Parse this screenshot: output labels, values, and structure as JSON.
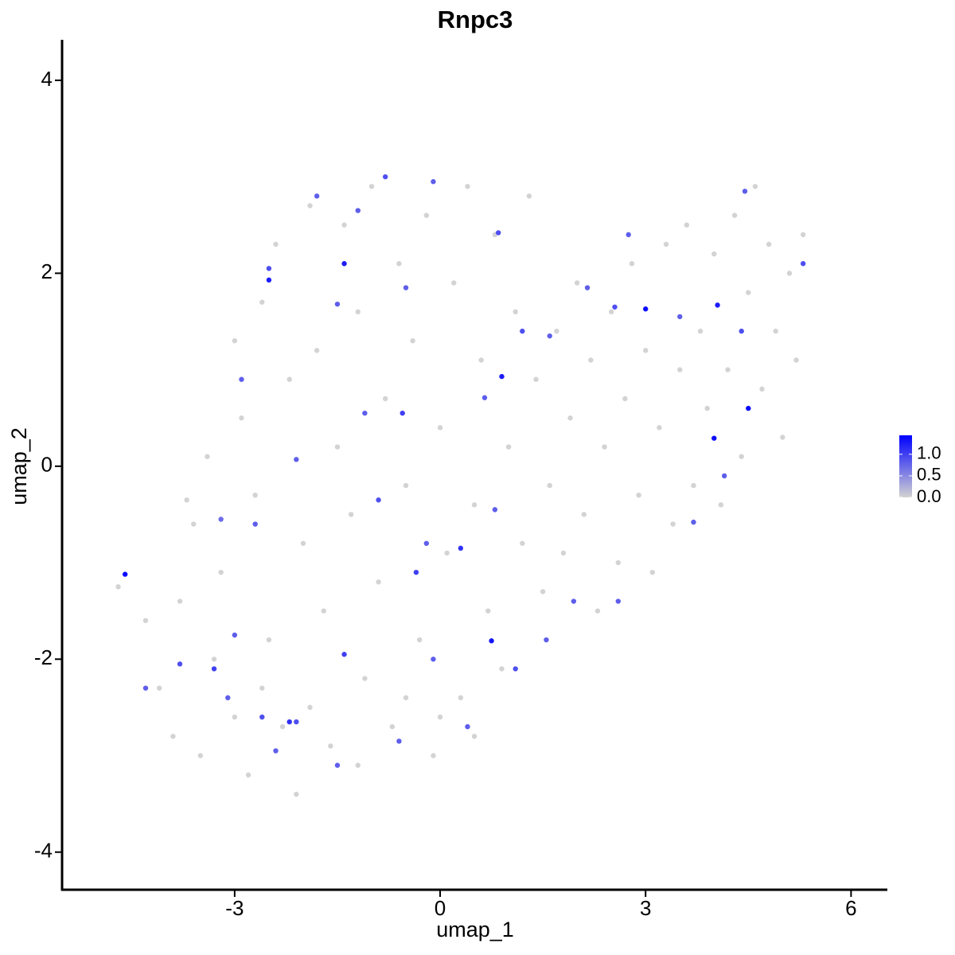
{
  "chart_data": {
    "type": "scatter",
    "title": "Rnpc3",
    "x_label": "umap_1",
    "y_label": "umap_2",
    "xlim": [
      -5.52,
      6.53
    ],
    "ylim": [
      -4.39,
      4.42
    ],
    "xticks": [
      -3,
      0,
      3,
      6
    ],
    "yticks": [
      -4,
      -2,
      0,
      2,
      4
    ],
    "low_color": "#d3d3d3",
    "high_color": "#0000ff",
    "clim": [
      0,
      1.44
    ],
    "cticks": [
      {
        "value": 0,
        "label": "0.0"
      },
      {
        "value": 0.5,
        "label": "0.5"
      },
      {
        "value": 1,
        "label": "1.0"
      }
    ],
    "x": [
      -4.7,
      -4.3,
      -4.1,
      -3.8,
      -3.9,
      -3.5,
      -3.6,
      -3.4,
      -3.2,
      -3.0,
      -3.0,
      -2.9,
      -2.8,
      -2.7,
      -2.6,
      -2.5,
      -2.4,
      -2.3,
      -2.2,
      -2.1,
      -2.0,
      -1.9,
      -1.8,
      -1.7,
      -1.6,
      -1.5,
      -1.4,
      -1.3,
      -1.2,
      -1.1,
      -1.0,
      -0.9,
      -0.8,
      -0.7,
      -0.6,
      -0.5,
      -0.4,
      -0.3,
      -0.2,
      -0.1,
      0.0,
      0.1,
      0.2,
      0.3,
      0.4,
      0.5,
      0.6,
      0.7,
      0.8,
      0.9,
      1.0,
      1.1,
      1.2,
      1.3,
      1.4,
      1.5,
      1.6,
      1.7,
      1.8,
      1.9,
      2.0,
      2.1,
      2.2,
      2.3,
      2.4,
      2.5,
      2.6,
      2.7,
      2.8,
      2.9,
      3.0,
      3.1,
      3.2,
      3.3,
      3.4,
      3.5,
      3.6,
      3.7,
      3.8,
      3.9,
      4.0,
      4.1,
      4.2,
      4.3,
      4.4,
      4.5,
      4.6,
      4.7,
      4.8,
      4.9,
      5.0,
      5.1,
      5.2,
      5.3,
      -3.3,
      -2.6,
      -1.9,
      -1.2,
      -0.5,
      0.5,
      -4.3,
      -3.8,
      -3.3,
      -3.1,
      -2.6,
      -2.4,
      -2.1,
      -1.5,
      -1.4,
      -3.0,
      -2.7,
      -3.2,
      -2.1,
      -2.9,
      -2.5,
      -1.8,
      -1.2,
      -0.8,
      -0.1,
      -0.5,
      -1.5,
      -1.1,
      -0.55,
      -0.9,
      -0.2,
      -0.35,
      0.3,
      0.8,
      0.65,
      1.2,
      1.6,
      0.85,
      2.15,
      2.55,
      2.75,
      3.5,
      4.4,
      4.45,
      5.3,
      4.15,
      3.7,
      2.6,
      1.95,
      1.55,
      1.1,
      0.4,
      -0.6,
      -0.1,
      -3.7,
      0.0,
      -4.6,
      -2.5,
      -1.4,
      0.9,
      3.0,
      4.05,
      4.5,
      4.0,
      0.75,
      -2.2
    ],
    "y": [
      -1.25,
      -1.6,
      -2.3,
      -1.4,
      -2.8,
      -3.0,
      -0.6,
      0.1,
      -1.1,
      -2.6,
      1.3,
      0.5,
      -3.2,
      -0.3,
      1.7,
      -1.8,
      2.3,
      -2.7,
      0.9,
      -3.4,
      -0.8,
      2.7,
      1.2,
      -1.5,
      -2.9,
      0.2,
      2.5,
      -0.5,
      1.6,
      -2.2,
      2.9,
      -1.2,
      0.7,
      -2.7,
      2.1,
      -0.2,
      1.3,
      -1.8,
      2.6,
      -3.0,
      0.4,
      -0.9,
      1.9,
      -2.4,
      2.9,
      -0.4,
      1.1,
      -1.5,
      2.4,
      -2.1,
      0.2,
      1.6,
      -0.8,
      2.8,
      0.9,
      -1.3,
      -0.2,
      1.4,
      -0.9,
      0.5,
      1.9,
      -0.5,
      1.1,
      -1.5,
      0.2,
      1.6,
      -1.0,
      0.7,
      2.1,
      -0.3,
      1.2,
      -1.1,
      0.4,
      2.3,
      -0.6,
      1.0,
      2.5,
      -0.2,
      1.4,
      0.6,
      2.2,
      -0.4,
      1.0,
      2.6,
      0.1,
      1.8,
      2.9,
      0.8,
      2.3,
      1.4,
      0.3,
      2.0,
      1.1,
      2.4,
      -2.0,
      -2.3,
      -2.5,
      -3.1,
      -2.4,
      -2.8,
      -2.3,
      -2.05,
      -2.1,
      -2.4,
      -2.6,
      -2.95,
      -2.65,
      -3.1,
      -1.95,
      -1.75,
      -0.6,
      -0.55,
      0.07,
      0.9,
      2.05,
      2.8,
      2.65,
      3.0,
      2.95,
      1.85,
      1.68,
      0.55,
      0.55,
      -0.35,
      -0.8,
      -1.1,
      -0.85,
      -0.45,
      0.71,
      1.4,
      1.35,
      2.42,
      1.85,
      1.65,
      2.4,
      1.55,
      1.4,
      2.85,
      2.1,
      -0.1,
      -0.58,
      -1.4,
      -1.4,
      -1.8,
      -2.1,
      -2.7,
      -2.85,
      -2.0,
      -0.35,
      -2.6,
      -1.12,
      1.93,
      2.1,
      0.93,
      1.63,
      1.67,
      0.6,
      0.29,
      -1.81,
      -2.65
    ],
    "values": [
      0,
      0,
      0,
      0,
      0,
      0,
      0,
      0,
      0,
      0,
      0,
      0,
      0,
      0,
      0,
      0,
      0,
      0,
      0,
      0,
      0,
      0,
      0,
      0,
      0,
      0,
      0,
      0,
      0,
      0,
      0,
      0,
      0,
      0,
      0,
      0,
      0,
      0,
      0,
      0,
      0,
      0,
      0,
      0,
      0,
      0,
      0,
      0,
      0,
      0,
      0,
      0,
      0,
      0,
      0,
      0,
      0,
      0,
      0,
      0,
      0,
      0,
      0,
      0,
      0,
      0,
      0,
      0,
      0,
      0,
      0,
      0,
      0,
      0,
      0,
      0,
      0,
      0,
      0,
      0,
      0,
      0,
      0,
      0,
      0,
      0,
      0,
      0,
      0,
      0,
      0,
      0,
      0,
      0,
      0,
      0,
      0,
      0,
      0,
      0,
      0.8,
      0.9,
      1.0,
      0.8,
      0.9,
      0.8,
      0.9,
      0.8,
      1.0,
      0.8,
      0.8,
      0.7,
      0.8,
      0.8,
      0.9,
      0.8,
      0.8,
      0.9,
      0.8,
      0.8,
      0.8,
      0.8,
      1.0,
      0.9,
      0.8,
      1.0,
      1.1,
      0.8,
      0.8,
      0.9,
      0.8,
      0.9,
      0.8,
      0.9,
      0.8,
      0.8,
      0.9,
      0.8,
      0.9,
      0.8,
      0.8,
      0.8,
      0.8,
      0.8,
      0.9,
      0.8,
      0.8,
      0.8,
      0,
      0,
      1.35,
      1.25,
      1.25,
      1.25,
      1.35,
      1.25,
      1.35,
      1.35,
      1.3,
      1.1
    ]
  }
}
